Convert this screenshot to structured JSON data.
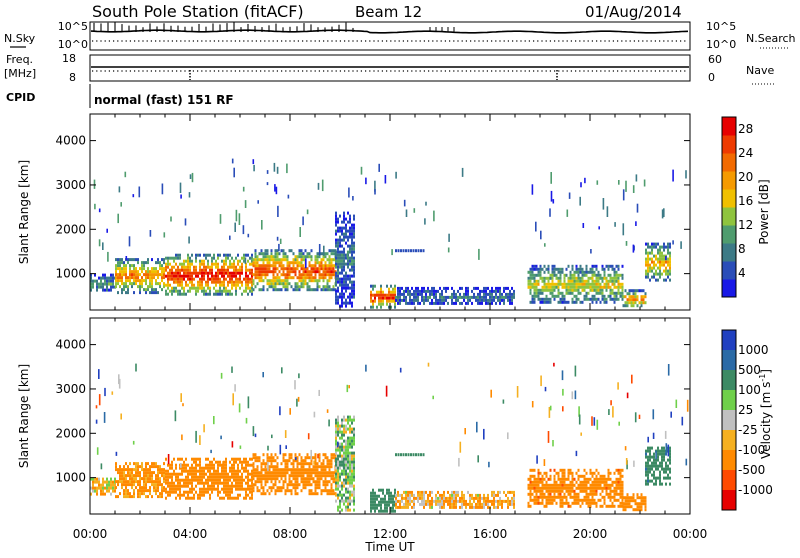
{
  "header": {
    "station": "South Pole Station (fitACF)",
    "beam": "Beam 12",
    "date": "01/Aug/2014"
  },
  "noise_panel": {
    "left_label": "N.Sky",
    "right_label": "N.Search",
    "left_ticks": [
      "10^5",
      "10^0"
    ],
    "right_ticks": [
      "10^5",
      "10^0"
    ]
  },
  "freq_panel": {
    "left_label_1": "Freq.",
    "left_label_2": "[MHz]",
    "left_ticks": [
      "18",
      "8"
    ],
    "right_label": "Nave",
    "right_ticks": [
      "60",
      "0"
    ]
  },
  "cpid_panel": {
    "label": "CPID",
    "text": "normal (fast) 151 RF"
  },
  "colors": {
    "power": [
      "#1919e6",
      "#2a4db8",
      "#3c7a86",
      "#4f9c6e",
      "#8fc43e",
      "#f0c000",
      "#f59a00",
      "#f26a00",
      "#ee3a00",
      "#e60000"
    ],
    "velocity": [
      "#e60000",
      "#ff4a00",
      "#ff8a00",
      "#f5b020",
      "#c0c0c0",
      "#6fd04a",
      "#3c8a64",
      "#2a6aa6",
      "#2040c0"
    ]
  },
  "chart_data": [
    {
      "type": "heatmap",
      "title": "Power",
      "ylabel": "Slant Range [km]",
      "xlabel": "Time UT",
      "x_ticks": [
        "00:00",
        "04:00",
        "08:00",
        "12:00",
        "16:00",
        "20:00",
        "00:00"
      ],
      "xlim": [
        0,
        24
      ],
      "ylim": [
        180,
        4600
      ],
      "y_ticks": [
        1000,
        2000,
        3000,
        4000
      ],
      "colorbar": {
        "label": "Power [dB]",
        "ticks": [
          4,
          8,
          12,
          16,
          20,
          24,
          28
        ],
        "range": [
          0,
          30
        ]
      },
      "echo_regions": [
        {
          "t_start": 0.0,
          "t_end": 1.0,
          "r_min": 600,
          "r_max": 1000,
          "intensity": 0.35
        },
        {
          "t_start": 1.0,
          "t_end": 3.0,
          "r_min": 600,
          "r_max": 1350,
          "intensity": 0.75
        },
        {
          "t_start": 3.0,
          "t_end": 6.5,
          "r_min": 550,
          "r_max": 1450,
          "intensity": 0.95
        },
        {
          "t_start": 6.5,
          "t_end": 9.8,
          "r_min": 650,
          "r_max": 1550,
          "intensity": 0.85
        },
        {
          "t_start": 9.8,
          "t_end": 10.6,
          "r_min": 300,
          "r_max": 2400,
          "intensity": 0.25
        },
        {
          "t_start": 11.2,
          "t_end": 12.2,
          "r_min": 250,
          "r_max": 750,
          "intensity": 0.95
        },
        {
          "t_start": 12.2,
          "t_end": 17.0,
          "r_min": 300,
          "r_max": 700,
          "intensity": 0.25
        },
        {
          "t_start": 17.5,
          "t_end": 21.3,
          "r_min": 350,
          "r_max": 1200,
          "intensity": 0.55
        },
        {
          "t_start": 21.3,
          "t_end": 22.2,
          "r_min": 250,
          "r_max": 650,
          "intensity": 0.7
        },
        {
          "t_start": 22.2,
          "t_end": 23.2,
          "r_min": 850,
          "r_max": 1700,
          "intensity": 0.65
        }
      ]
    },
    {
      "type": "heatmap",
      "title": "Velocity",
      "ylabel": "Slant Range [km]",
      "xlabel": "Time UT",
      "x_ticks": [
        "00:00",
        "04:00",
        "08:00",
        "12:00",
        "16:00",
        "20:00",
        "00:00"
      ],
      "xlim": [
        0,
        24
      ],
      "ylim": [
        180,
        4600
      ],
      "y_ticks": [
        1000,
        2000,
        3000,
        4000
      ],
      "colorbar": {
        "label": "Velocity [m s^-1]",
        "ticks": [
          1000,
          500,
          100,
          25,
          -25,
          -100,
          -500,
          -1000
        ]
      },
      "echo_regions": [
        {
          "t_start": 0.0,
          "t_end": 1.0,
          "r_min": 600,
          "r_max": 1000,
          "velocity": -50
        },
        {
          "t_start": 1.0,
          "t_end": 3.0,
          "r_min": 600,
          "r_max": 1350,
          "velocity": -150
        },
        {
          "t_start": 3.0,
          "t_end": 6.5,
          "r_min": 550,
          "r_max": 1450,
          "velocity": -300
        },
        {
          "t_start": 6.5,
          "t_end": 9.8,
          "r_min": 650,
          "r_max": 1550,
          "velocity": -250
        },
        {
          "t_start": 9.8,
          "t_end": 10.6,
          "r_min": 300,
          "r_max": 2400,
          "velocity": 50
        },
        {
          "t_start": 11.2,
          "t_end": 12.2,
          "r_min": 250,
          "r_max": 750,
          "velocity": 300
        },
        {
          "t_start": 12.2,
          "t_end": 17.0,
          "r_min": 300,
          "r_max": 700,
          "velocity": -80
        },
        {
          "t_start": 17.5,
          "t_end": 21.3,
          "r_min": 350,
          "r_max": 1200,
          "velocity": -400
        },
        {
          "t_start": 21.3,
          "t_end": 22.2,
          "r_min": 250,
          "r_max": 650,
          "velocity": -300
        },
        {
          "t_start": 22.2,
          "t_end": 23.2,
          "r_min": 850,
          "r_max": 1700,
          "velocity": 400
        }
      ]
    }
  ]
}
